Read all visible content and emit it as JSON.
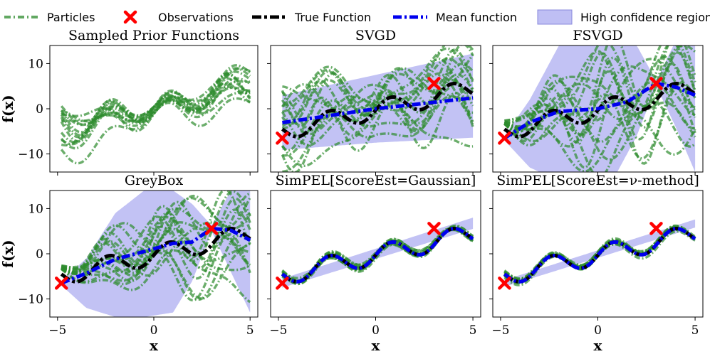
{
  "legend": [
    {
      "label": "Particles",
      "kind": "particles"
    },
    {
      "label": "Observations",
      "kind": "observations"
    },
    {
      "label": "True Function",
      "kind": "true"
    },
    {
      "label": "Mean function",
      "kind": "mean"
    },
    {
      "label": "High confidence region",
      "kind": "region"
    }
  ],
  "colors": {
    "particles": "#2e8b2e",
    "observations": "#ff0000",
    "true_function": "#000000",
    "mean_function": "#0000ee",
    "confidence_region": "#aaaaf0"
  },
  "chart_data": [
    {
      "type": "line",
      "title": "Sampled Prior Functions",
      "xlabel": "",
      "ylabel": "f(x)",
      "xlim": [
        -5.4,
        5.4
      ],
      "ylim": [
        -14,
        14
      ],
      "xticks": [],
      "yticks": [
        10,
        0,
        -10
      ],
      "ytick_labels": [
        "10",
        "0",
        "−10"
      ],
      "shows": {
        "particles": true,
        "true": false,
        "mean": false,
        "region": false,
        "observations": false
      },
      "particles": {
        "count": 14,
        "spread_left": 7,
        "spread_mid": 1.5,
        "spread_right": 6
      },
      "confidence_band": null,
      "observations": []
    },
    {
      "type": "line",
      "title": "SVGD",
      "xlabel": "",
      "ylabel": "",
      "xlim": [
        -5.4,
        5.4
      ],
      "ylim": [
        -14,
        14
      ],
      "xticks": [],
      "yticks": [],
      "shows": {
        "particles": true,
        "true": true,
        "mean": true,
        "region": true,
        "observations": true
      },
      "particles": {
        "count": 16,
        "spread_left": 10,
        "spread_mid": 6,
        "spread_right": 11
      },
      "mean_function": {
        "x": [
          -5,
          0,
          5
        ],
        "y": [
          -3.2,
          0,
          2.4
        ]
      },
      "confidence_band": {
        "x": [
          -5,
          0,
          5
        ],
        "lower": [
          -9.2,
          -7.5,
          -6.4
        ],
        "upper": [
          2.8,
          7.5,
          12.2
        ]
      },
      "observations": [
        {
          "x": -4.8,
          "y": -6.5
        },
        {
          "x": 3,
          "y": 5.6
        }
      ]
    },
    {
      "type": "line",
      "title": "FSVGD",
      "xlabel": "",
      "ylabel": "",
      "xlim": [
        -5.4,
        5.4
      ],
      "ylim": [
        -14,
        14
      ],
      "xticks": [],
      "yticks": [],
      "shows": {
        "particles": true,
        "true": true,
        "mean": true,
        "region": true,
        "observations": true
      },
      "particles": {
        "count": 16,
        "spread_left": 0.5,
        "spread_mid": 14,
        "spread_right": 12
      },
      "mean_function": {
        "x": [
          -4.8,
          -3.5,
          -2,
          0,
          1.5,
          3,
          4,
          5
        ],
        "y": [
          -6.5,
          -3,
          -0.6,
          0,
          1.5,
          5.6,
          4.8,
          3
        ]
      },
      "confidence_band": {
        "x": [
          -4.8,
          -3.5,
          -2,
          -0.5,
          1,
          2,
          3,
          4,
          5
        ],
        "lower": [
          -7,
          -13,
          -16,
          -16,
          -14,
          -6,
          5,
          -4,
          -14
        ],
        "upper": [
          -6,
          2,
          14,
          16,
          16,
          14,
          6.2,
          15,
          16
        ]
      },
      "observations": [
        {
          "x": -4.8,
          "y": -6.5
        },
        {
          "x": 3,
          "y": 5.6
        }
      ]
    },
    {
      "type": "line",
      "title": "GreyBox",
      "xlabel": "x",
      "ylabel": "f(x)",
      "xlim": [
        -5.4,
        5.4
      ],
      "ylim": [
        -14,
        14
      ],
      "xticks": [
        -5,
        0,
        5
      ],
      "xtick_labels": [
        "−5",
        "0",
        "5"
      ],
      "yticks": [
        10,
        0,
        -10
      ],
      "ytick_labels": [
        "10",
        "0",
        "−10"
      ],
      "shows": {
        "particles": true,
        "true": true,
        "mean": true,
        "region": true,
        "observations": true
      },
      "particles": {
        "count": 16,
        "spread_left": 0.5,
        "spread_mid": 10,
        "spread_right": 12
      },
      "mean_function": {
        "x": [
          -4.8,
          -3.5,
          -2,
          -0.5,
          1,
          2,
          3,
          4,
          5
        ],
        "y": [
          -6.5,
          -4.3,
          -1.2,
          0.5,
          2.3,
          2.6,
          5.6,
          5.2,
          3
        ]
      },
      "confidence_band": {
        "x": [
          -4.8,
          -3.5,
          -2,
          -0.5,
          1,
          2,
          3,
          4,
          5
        ],
        "lower": [
          -7,
          -12,
          -14,
          -14,
          -13,
          -6,
          5,
          -4,
          -13
        ],
        "upper": [
          -6,
          -1,
          9,
          14,
          14,
          11,
          6.2,
          14,
          14
        ]
      },
      "observations": [
        {
          "x": -4.8,
          "y": -6.5
        },
        {
          "x": 3,
          "y": 5.6
        }
      ]
    },
    {
      "type": "line",
      "title": "SimPEL[ScoreEst=Gaussian]",
      "xlabel": "x",
      "ylabel": "",
      "xlim": [
        -5.4,
        5.4
      ],
      "ylim": [
        -14,
        14
      ],
      "xticks": [
        -5,
        0,
        5
      ],
      "xtick_labels": [
        "−5",
        "0",
        "5"
      ],
      "yticks": [],
      "shows": {
        "particles": true,
        "true": true,
        "mean": true,
        "region": true,
        "observations": true
      },
      "particles": {
        "count": 12,
        "spread_left": 0.9,
        "spread_mid": 0.9,
        "spread_right": 0.9
      },
      "mean_function": {
        "x": [
          -4.8,
          5
        ],
        "y": [
          -6.5,
          6.8
        ]
      },
      "confidence_band": {
        "x": [
          -4.8,
          5
        ],
        "lower": [
          -7.5,
          5.5
        ],
        "upper": [
          -5.5,
          8
        ]
      },
      "observations": [
        {
          "x": -4.8,
          "y": -6.5
        },
        {
          "x": 3,
          "y": 5.6
        }
      ]
    },
    {
      "type": "line",
      "title": "SimPEL[ScoreEst=ν-method]",
      "xlabel": "x",
      "ylabel": "",
      "xlim": [
        -5.4,
        5.4
      ],
      "ylim": [
        -14,
        14
      ],
      "xticks": [
        -5,
        0,
        5
      ],
      "xtick_labels": [
        "−5",
        "0",
        "5"
      ],
      "yticks": [],
      "shows": {
        "particles": true,
        "true": true,
        "mean": true,
        "region": true,
        "observations": true
      },
      "particles": {
        "count": 12,
        "spread_left": 0.7,
        "spread_mid": 0.7,
        "spread_right": 0.7
      },
      "mean_function": {
        "x": [
          -4.8,
          5
        ],
        "y": [
          -6.5,
          6.8
        ]
      },
      "confidence_band": {
        "x": [
          -4.8,
          5
        ],
        "lower": [
          -7.3,
          5.8
        ],
        "upper": [
          -5.8,
          7.6
        ]
      },
      "observations": [
        {
          "x": -4.8,
          "y": -6.5
        },
        {
          "x": 3,
          "y": 5.6
        }
      ]
    }
  ]
}
